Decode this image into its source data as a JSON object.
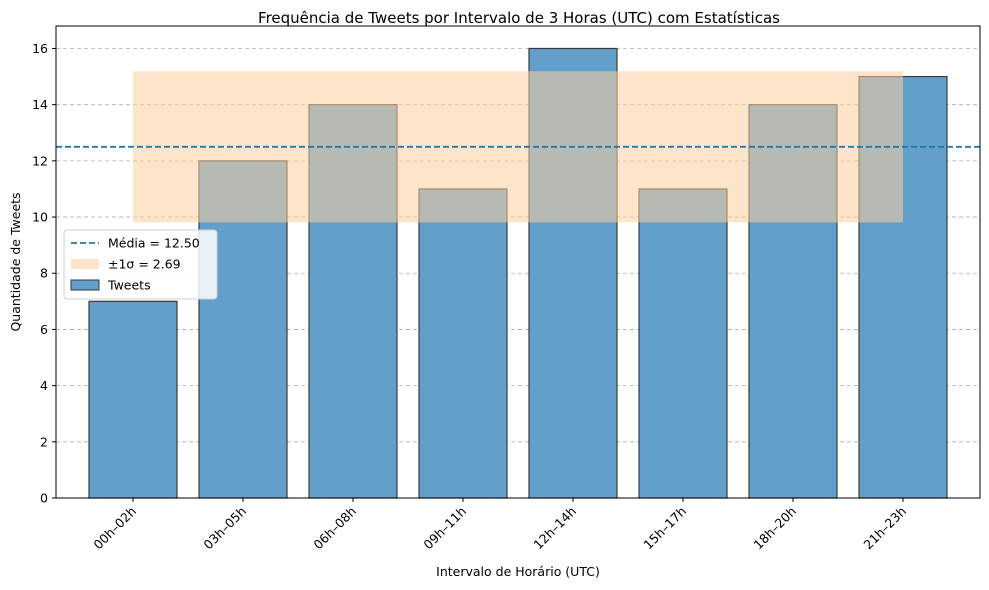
{
  "chart_data": {
    "type": "bar",
    "title": "Frequência de Tweets por Intervalo de 3 Horas (UTC) com Estatísticas",
    "xlabel": "Intervalo de Horário (UTC)",
    "ylabel": "Quantidade de Tweets",
    "categories": [
      "00h–02h",
      "03h–05h",
      "06h–08h",
      "09h–11h",
      "12h–14h",
      "15h–17h",
      "18h–20h",
      "21h–23h"
    ],
    "series": [
      {
        "name": "Tweets",
        "values": [
          7,
          12,
          14,
          11,
          16,
          11,
          14,
          15
        ]
      }
    ],
    "mean": 12.5,
    "std": 2.69,
    "ylim": [
      0,
      16.8
    ],
    "yticks": [
      0,
      2,
      4,
      6,
      8,
      10,
      12,
      14,
      16
    ],
    "grid": "y-dashed",
    "legend_position": "center-left",
    "legend": [
      {
        "kind": "line",
        "label": "Média = 12.50"
      },
      {
        "kind": "band",
        "label": "±1σ = 2.69"
      },
      {
        "kind": "bar",
        "label": "Tweets"
      }
    ],
    "colors": {
      "bar": "#62a0cb",
      "bar_edge": "#3a3a3a",
      "mean_line": "#1f77b4",
      "band": "#ffe3c9"
    }
  }
}
